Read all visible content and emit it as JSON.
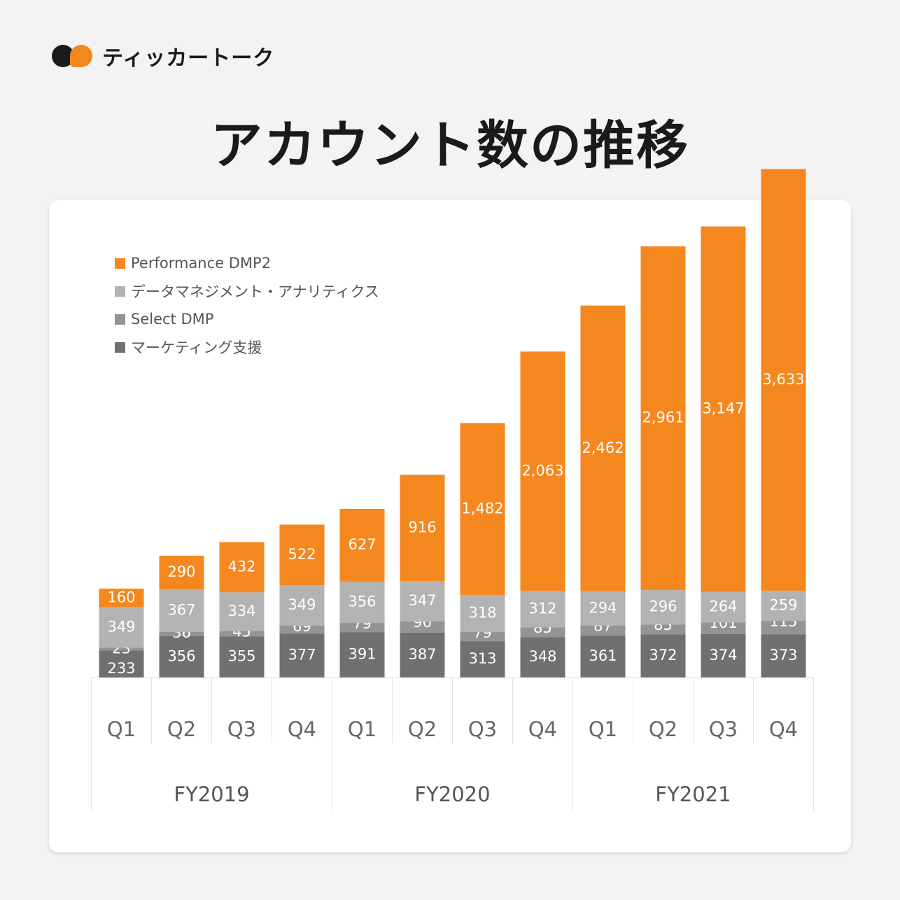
{
  "brand": {
    "name": "ティッカートーク",
    "logo": "speech-bubble-dots-logo"
  },
  "title": "アカウント数の推移",
  "colors": {
    "background": "#f3f3f3",
    "card": "#ffffff",
    "performance_dmp2": "#f5871f",
    "data_management": "#b3b3b3",
    "select_dmp": "#949494",
    "marketing_support": "#707070"
  },
  "chart_data": {
    "type": "bar",
    "stacked": true,
    "title": "",
    "categories": [
      "Q1",
      "Q2",
      "Q3",
      "Q4",
      "Q1",
      "Q2",
      "Q3",
      "Q4",
      "Q1",
      "Q2",
      "Q3",
      "Q4"
    ],
    "groups": [
      {
        "label": "FY2019",
        "span": 4
      },
      {
        "label": "FY2020",
        "span": 4
      },
      {
        "label": "FY2021",
        "span": 4
      }
    ],
    "series": [
      {
        "name": "マーケティング支援",
        "color": "#707070",
        "values": [
          233,
          356,
          355,
          377,
          391,
          387,
          313,
          348,
          361,
          372,
          374,
          373
        ],
        "labels": [
          "233",
          "356",
          "355",
          "377",
          "391",
          "387",
          "313",
          "348",
          "361",
          "372",
          "374",
          "373"
        ]
      },
      {
        "name": "Select DMP",
        "color": "#949494",
        "values": [
          23,
          36,
          45,
          69,
          79,
          96,
          79,
          85,
          87,
          85,
          101,
          115
        ],
        "labels": [
          "23",
          "36",
          "45",
          "69",
          "79",
          "96",
          "79",
          "85",
          "87",
          "85",
          "101",
          "115"
        ]
      },
      {
        "name": "データマネジメント・アナリティクス",
        "color": "#b3b3b3",
        "values": [
          349,
          367,
          334,
          349,
          356,
          347,
          318,
          312,
          294,
          296,
          264,
          259
        ],
        "labels": [
          "349",
          "367",
          "334",
          "349",
          "356",
          "347",
          "318",
          "312",
          "294",
          "296",
          "264",
          "259"
        ]
      },
      {
        "name": "Performance DMP2",
        "color": "#f5871f",
        "values": [
          160,
          290,
          432,
          522,
          627,
          916,
          1482,
          2063,
          2462,
          2961,
          3147,
          3633
        ],
        "labels": [
          "160",
          "290",
          "432",
          "522",
          "627",
          "916",
          "1,482",
          "2,063",
          "2,462",
          "2,961",
          "3,147",
          "3,633"
        ]
      }
    ],
    "legend_order": [
      "Performance DMP2",
      "データマネジメント・アナリティクス",
      "Select DMP",
      "マーケティング支援"
    ],
    "legend_position": "top-left",
    "ylim": [
      0,
      4450
    ],
    "grid": false
  }
}
